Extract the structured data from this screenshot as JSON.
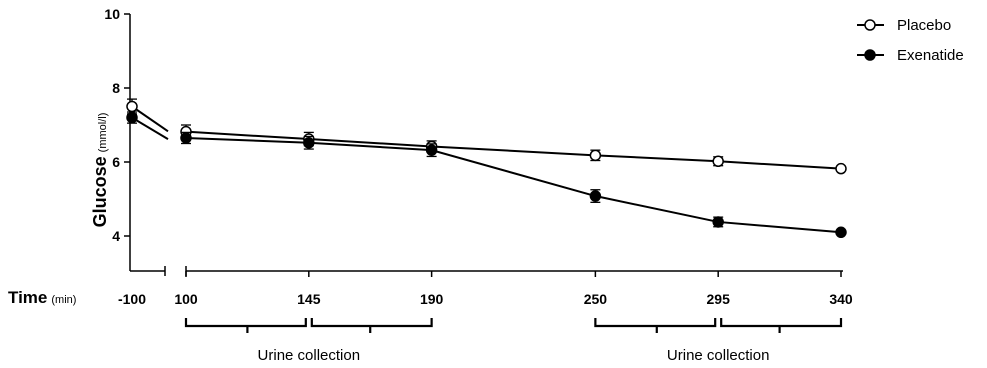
{
  "chart_data": {
    "type": "line",
    "ylabel": "Glucose",
    "ylabel_unit": "(mmol/l)",
    "xlabel": "Time",
    "xlabel_unit": "(min)",
    "ylim": [
      3,
      10
    ],
    "yticks": [
      4,
      6,
      8,
      10
    ],
    "x_segments": [
      [
        -100,
        -100
      ],
      [
        100,
        340
      ]
    ],
    "xticks": [
      -100,
      100,
      145,
      190,
      250,
      295,
      340
    ],
    "legend_position": "top-right",
    "series": [
      {
        "name": "Placebo",
        "marker": "open-circle",
        "x": [
          -100,
          100,
          145,
          190,
          250,
          295,
          340
        ],
        "y": [
          7.5,
          6.82,
          6.62,
          6.42,
          6.18,
          6.02,
          5.82
        ],
        "err": [
          0.2,
          0.18,
          0.18,
          0.15,
          0.14,
          0.12,
          0.06
        ]
      },
      {
        "name": "Exenatide",
        "marker": "filled-circle",
        "x": [
          -100,
          100,
          145,
          190,
          250,
          295,
          340
        ],
        "y": [
          7.2,
          6.65,
          6.52,
          6.32,
          5.08,
          4.38,
          4.1
        ],
        "err": [
          0.15,
          0.15,
          0.17,
          0.17,
          0.17,
          0.13,
          0.05
        ]
      }
    ],
    "annotations": [
      {
        "label": "Urine collection",
        "from": 100,
        "to": 190,
        "split": 145
      },
      {
        "label": "Urine collection",
        "from": 250,
        "to": 340,
        "split": 295
      }
    ]
  }
}
